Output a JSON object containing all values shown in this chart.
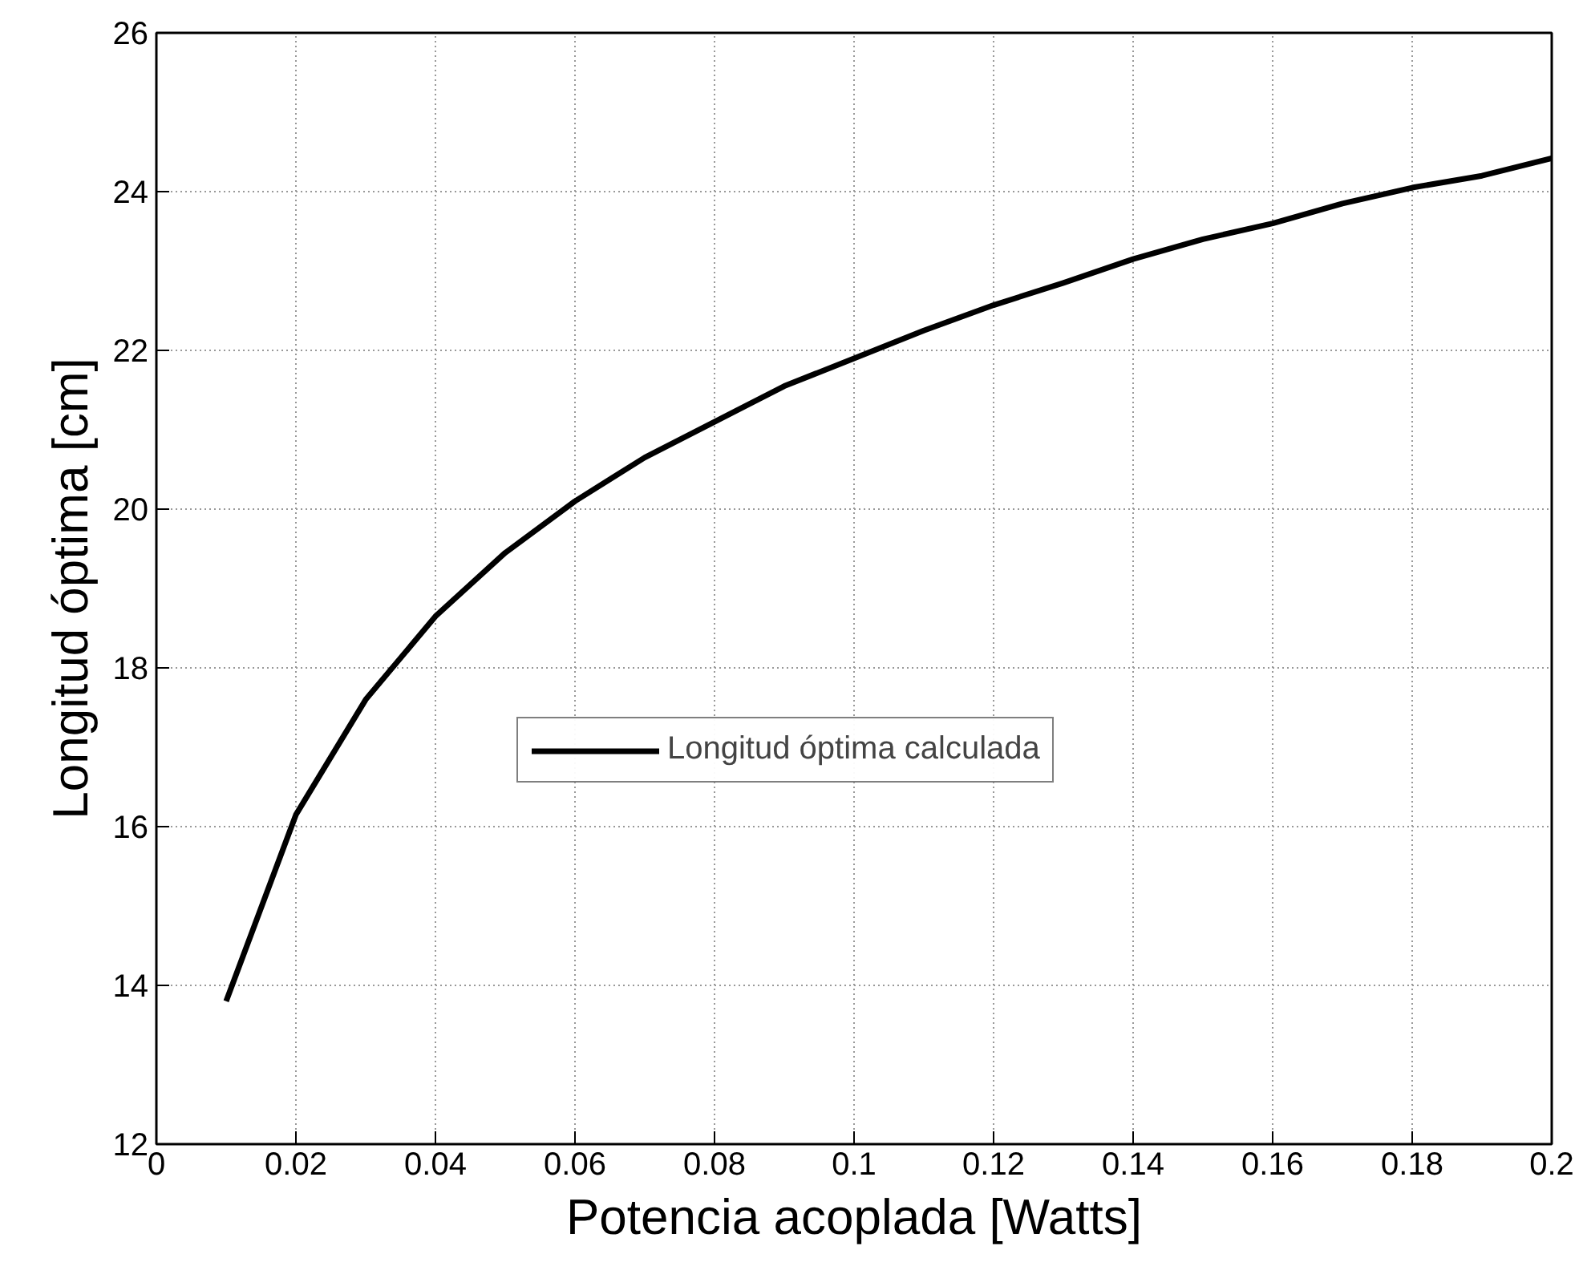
{
  "chart_data": {
    "type": "line",
    "xlabel": "Potencia acoplada [Watts]",
    "ylabel": "Longitud óptima [cm]",
    "x": [
      0.01,
      0.02,
      0.03,
      0.04,
      0.05,
      0.06,
      0.07,
      0.08,
      0.09,
      0.1,
      0.11,
      0.12,
      0.13,
      0.14,
      0.15,
      0.16,
      0.17,
      0.18,
      0.19,
      0.2
    ],
    "series": [
      {
        "name": "Longitud óptima calculada",
        "color": "#000000",
        "values": [
          13.8,
          16.15,
          17.6,
          18.65,
          19.45,
          20.1,
          20.65,
          21.1,
          21.55,
          21.9,
          22.25,
          22.57,
          22.85,
          23.15,
          23.4,
          23.6,
          23.85,
          24.05,
          24.2,
          24.42
        ]
      }
    ],
    "xlim": [
      0,
      0.2
    ],
    "ylim": [
      12,
      26
    ],
    "xticks": [
      0,
      0.02,
      0.04,
      0.06,
      0.08,
      0.1,
      0.12,
      0.14,
      0.16,
      0.18,
      0.2
    ],
    "yticks": [
      12,
      14,
      16,
      18,
      20,
      22,
      24,
      26
    ],
    "grid": true,
    "legend": "center",
    "line_style": "solid",
    "marker": "none"
  }
}
